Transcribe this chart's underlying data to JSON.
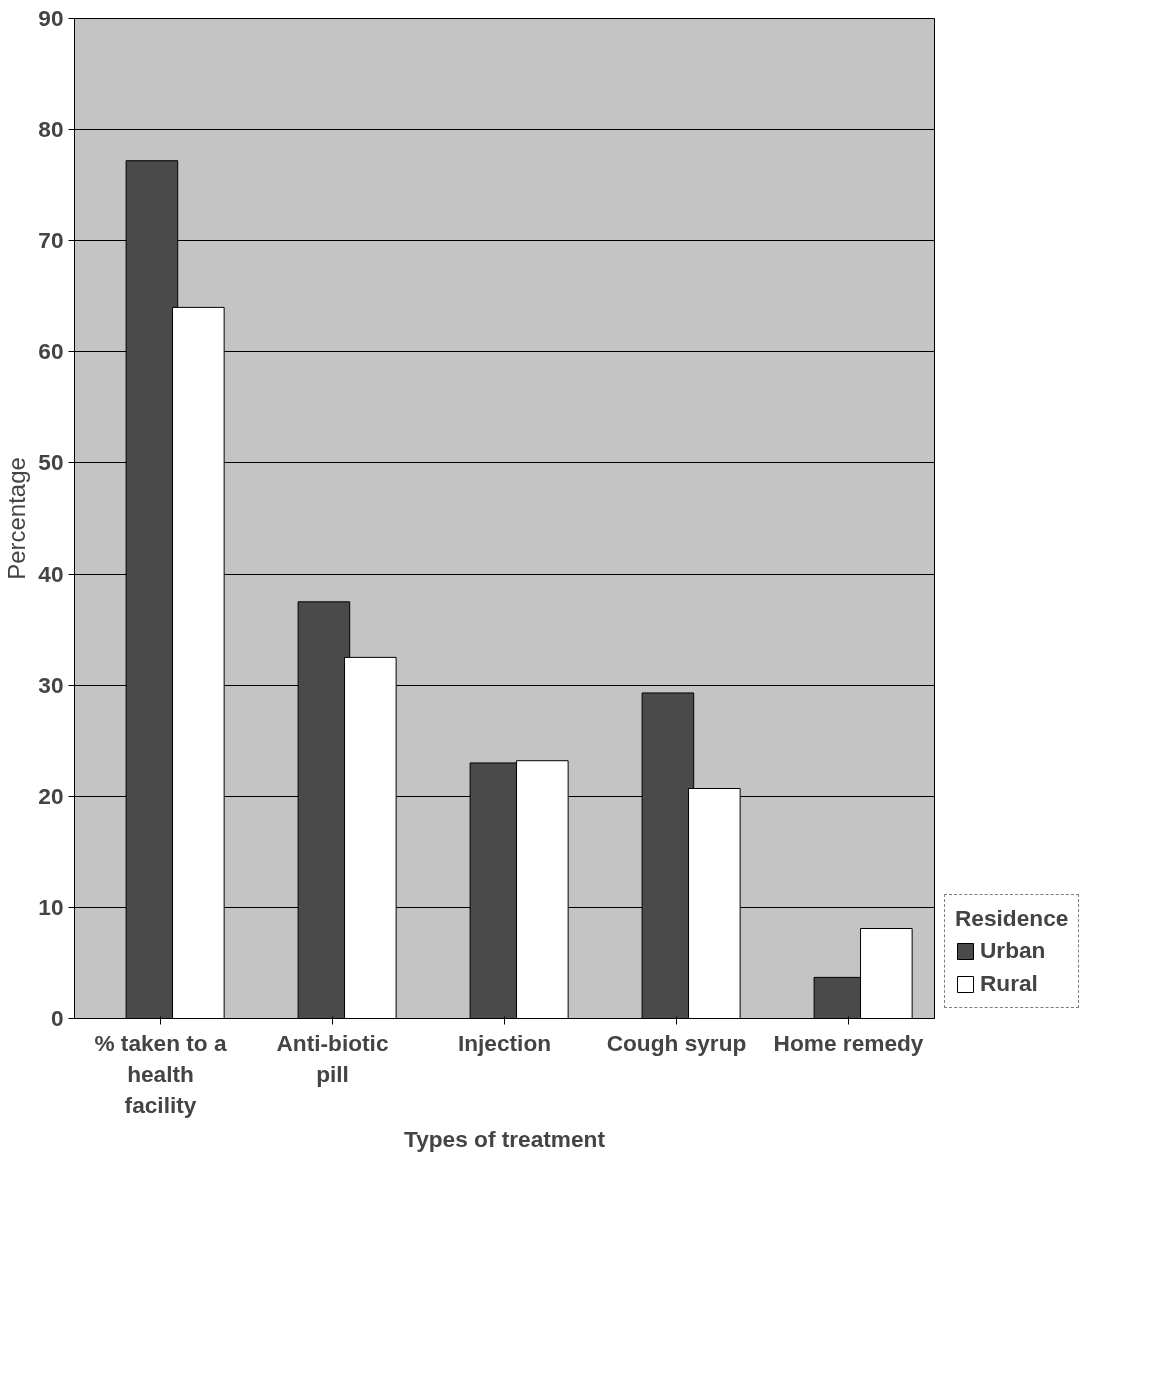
{
  "chart_data": {
    "type": "bar",
    "xlabel": "Types of treatment",
    "ylabel": "Percentage",
    "legend_title": "Residence",
    "categories": [
      "% taken to a health facility",
      "Anti-biotic pill",
      "Injection",
      "Cough syrup",
      "Home remedy"
    ],
    "series": [
      {
        "name": "Urban",
        "color": "#4a4a4a",
        "values": [
          77.2,
          37.5,
          23,
          29.3,
          3.7
        ]
      },
      {
        "name": "Rural",
        "color": "#ffffff",
        "values": [
          64,
          32.5,
          23.2,
          20.7,
          8.1
        ]
      }
    ],
    "ylim": [
      0,
      90
    ],
    "yticks": [
      0,
      10,
      20,
      30,
      40,
      50,
      60,
      70,
      80,
      90
    ],
    "grid": "y",
    "legend": "bottom right"
  }
}
